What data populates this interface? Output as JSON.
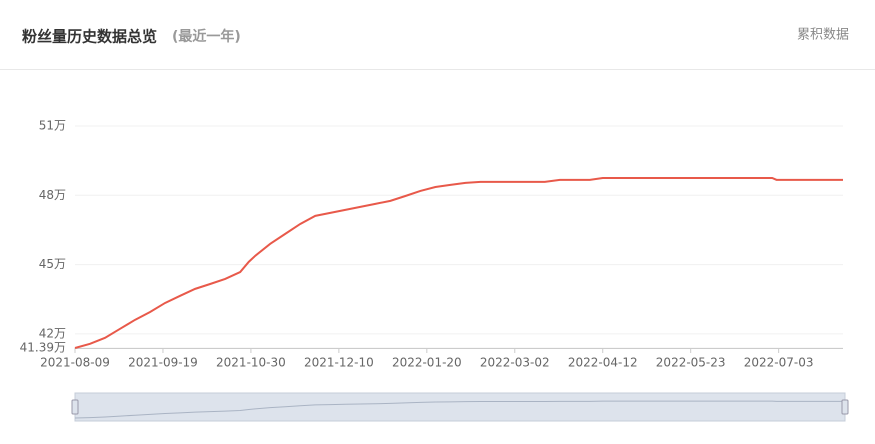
{
  "header": {
    "title": "粉丝量历史数据总览",
    "subtitle": "(最近一年)",
    "link": "累积数据"
  },
  "chart_data": {
    "type": "line",
    "x": [
      "2021-08-09",
      "2021-08-16",
      "2021-08-23",
      "2021-08-30",
      "2021-09-06",
      "2021-09-13",
      "2021-09-20",
      "2021-09-27",
      "2021-10-04",
      "2021-10-11",
      "2021-10-18",
      "2021-10-25",
      "2021-10-29",
      "2021-11-01",
      "2021-11-08",
      "2021-11-15",
      "2021-11-22",
      "2021-11-29",
      "2021-12-06",
      "2021-12-13",
      "2021-12-20",
      "2021-12-27",
      "2022-01-03",
      "2022-01-10",
      "2022-01-17",
      "2022-01-24",
      "2022-01-31",
      "2022-02-07",
      "2022-02-14",
      "2022-03-16",
      "2022-03-23",
      "2022-04-06",
      "2022-04-12",
      "2022-06-30",
      "2022-07-02",
      "2022-08-02"
    ],
    "series": [
      {
        "name": "粉丝量",
        "color": "#e8594a",
        "values": [
          41.39,
          41.57,
          41.83,
          42.22,
          42.61,
          42.95,
          43.34,
          43.65,
          43.95,
          44.16,
          44.38,
          44.68,
          45.12,
          45.38,
          45.9,
          46.33,
          46.76,
          47.11,
          47.24,
          47.37,
          47.5,
          47.63,
          47.76,
          47.97,
          48.19,
          48.36,
          48.45,
          48.54,
          48.58,
          48.58,
          48.67,
          48.67,
          48.75,
          48.75,
          48.67,
          48.67
        ]
      }
    ],
    "xlim": [
      "2021-08-09",
      "2022-08-02"
    ],
    "xticks": [
      "2021-08-09",
      "2021-09-19",
      "2021-10-30",
      "2021-12-10",
      "2022-01-20",
      "2022-03-02",
      "2022-04-12",
      "2022-05-23",
      "2022-07-03"
    ],
    "ylim": [
      41.39,
      51
    ],
    "yticks": [
      {
        "value": 41.39,
        "label": "41.39万"
      },
      {
        "value": 42,
        "label": "42万"
      },
      {
        "value": 45,
        "label": "45万"
      },
      {
        "value": 48,
        "label": "48万"
      },
      {
        "value": 51,
        "label": "51万"
      }
    ],
    "grid": true
  }
}
